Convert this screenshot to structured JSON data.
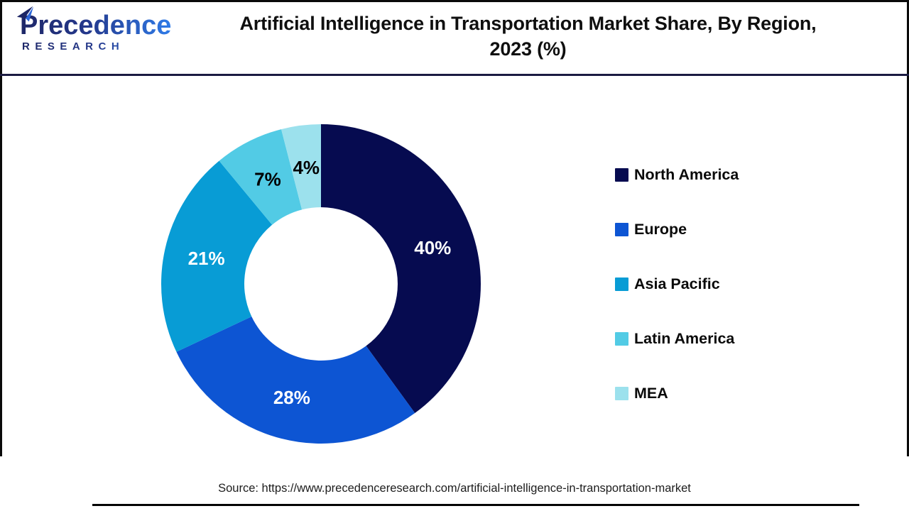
{
  "header": {
    "logo": {
      "name": "Precedence",
      "subname": "RESEARCH"
    },
    "title_line1": "Artificial Intelligence in Transportation Market Share, By Region,",
    "title_line2": "2023 (%)"
  },
  "chart_data": {
    "type": "pie",
    "subtype": "donut",
    "title": "Artificial Intelligence in Transportation Market Share, By Region, 2023 (%)",
    "categories": [
      "North America",
      "Europe",
      "Asia Pacific",
      "Latin America",
      "MEA"
    ],
    "values": [
      40,
      28,
      21,
      7,
      4
    ],
    "unit": "%",
    "colors": [
      "#060B50",
      "#0D55D3",
      "#089CD5",
      "#52CBE5",
      "#9CE1ED"
    ],
    "label_text_colors": [
      "#FFFFFF",
      "#FFFFFF",
      "#FFFFFF",
      "#000000",
      "#000000"
    ],
    "start_angle_deg": 0,
    "direction": "clockwise",
    "inner_radius_ratio": 0.48,
    "label_radius_ratio": 0.735,
    "legend_position": "right"
  },
  "footer": {
    "source": "Source: https://www.precedenceresearch.com/artificial-intelligence-in-transportation-market"
  },
  "style": {
    "frame_color": "#0A0A0A",
    "separator_color": "#1B1B42",
    "logo_gradient_start": "#1E2767",
    "logo_gradient_end": "#2F7BE8"
  }
}
